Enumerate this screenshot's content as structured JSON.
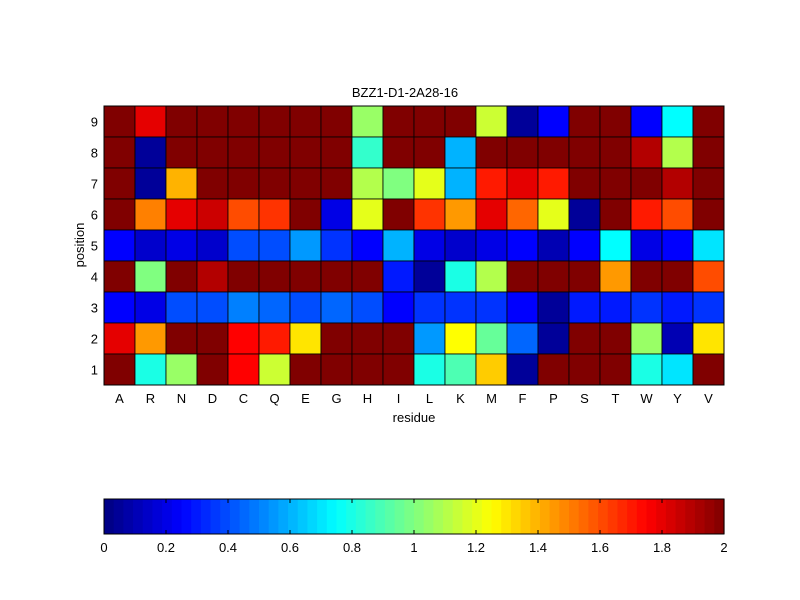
{
  "chart_data": {
    "type": "heatmap",
    "title": "BZZ1-D1-2A28-16",
    "xlabel": "residue",
    "ylabel": "position",
    "x_categories": [
      "A",
      "R",
      "N",
      "D",
      "C",
      "Q",
      "E",
      "G",
      "H",
      "I",
      "L",
      "K",
      "M",
      "F",
      "P",
      "S",
      "T",
      "W",
      "Y",
      "V"
    ],
    "y_categories": [
      "9",
      "8",
      "7",
      "6",
      "5",
      "4",
      "3",
      "2",
      "1"
    ],
    "values": [
      [
        2.0,
        1.8,
        2.0,
        2.0,
        2.0,
        2.0,
        2.0,
        2.0,
        1.05,
        2.0,
        2.0,
        2.0,
        1.15,
        0.05,
        0.25,
        2.0,
        2.0,
        0.25,
        0.75,
        2.0
      ],
      [
        2.0,
        0.05,
        2.0,
        2.0,
        2.0,
        2.0,
        2.0,
        2.0,
        0.85,
        2.0,
        2.0,
        0.6,
        2.0,
        2.0,
        2.0,
        2.0,
        2.0,
        1.9,
        1.1,
        2.0
      ],
      [
        2.0,
        0.05,
        1.4,
        2.0,
        2.0,
        2.0,
        2.0,
        2.0,
        1.1,
        1.0,
        1.2,
        0.6,
        1.7,
        1.8,
        1.7,
        2.0,
        2.0,
        2.0,
        1.9,
        2.0
      ],
      [
        2.0,
        1.5,
        1.8,
        1.85,
        1.6,
        1.65,
        2.0,
        0.2,
        1.2,
        2.0,
        1.65,
        1.45,
        1.8,
        1.55,
        1.2,
        0.05,
        2.0,
        1.7,
        1.6,
        2.0
      ],
      [
        0.25,
        0.15,
        0.2,
        0.15,
        0.4,
        0.4,
        0.55,
        0.35,
        0.25,
        0.6,
        0.2,
        0.15,
        0.2,
        0.25,
        0.1,
        0.25,
        0.75,
        0.2,
        0.25,
        0.7
      ],
      [
        2.0,
        1.0,
        2.0,
        1.9,
        2.0,
        2.0,
        2.0,
        2.0,
        2.0,
        0.3,
        0.05,
        0.8,
        1.1,
        2.0,
        2.0,
        2.0,
        1.45,
        2.0,
        2.0,
        1.6
      ],
      [
        0.25,
        0.2,
        0.4,
        0.4,
        0.5,
        0.45,
        0.4,
        0.45,
        0.4,
        0.25,
        0.35,
        0.35,
        0.35,
        0.25,
        0.05,
        0.3,
        0.3,
        0.35,
        0.3,
        0.35
      ],
      [
        1.8,
        1.45,
        2.0,
        2.0,
        1.75,
        1.7,
        1.3,
        2.0,
        2.0,
        2.0,
        0.55,
        1.25,
        0.95,
        0.45,
        0.05,
        2.0,
        2.0,
        1.05,
        0.1,
        1.3
      ],
      [
        2.0,
        0.8,
        1.05,
        2.0,
        1.75,
        1.15,
        2.0,
        2.0,
        2.0,
        2.0,
        0.8,
        0.9,
        1.35,
        0.05,
        2.0,
        2.0,
        2.0,
        0.8,
        0.7,
        2.0
      ]
    ],
    "colormap": "jet",
    "colorbar": {
      "range": [
        0,
        2
      ],
      "ticks": [
        "0",
        "0.2",
        "0.4",
        "0.6",
        "0.8",
        "1",
        "1.2",
        "1.4",
        "1.6",
        "1.8",
        "2"
      ],
      "placement": "bottom"
    },
    "grid": true,
    "legend": "none"
  }
}
